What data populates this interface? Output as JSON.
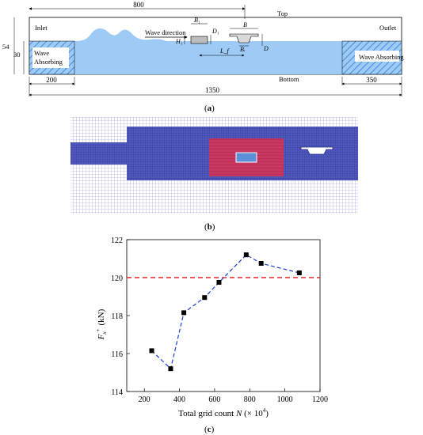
{
  "panel_a": {
    "label_open": "(",
    "label_letter": "a",
    "label_close": ")",
    "dim_800": "800",
    "dim_top": "Top",
    "dim_54": "54",
    "dim_30": "30",
    "inlet": "Inlet",
    "outlet": "Outlet",
    "wave_direction": "Wave direction",
    "wave_absorbing_left_1": "Wave",
    "wave_absorbing_left_2": "Absorbing",
    "wave_absorbing_right": "Wave Absorbing",
    "dim_200": "200",
    "dim_350": "350",
    "bottom": "Bottom",
    "dim_1350": "1350",
    "sym_B1": "B₁",
    "sym_H1": "H₁",
    "sym_D1": "D₁",
    "sym_B": "B",
    "sym_Br": "Bᵣ",
    "sym_D": "D",
    "sym_Lf": "L_f",
    "colors": {
      "water": "#9ecbf6",
      "hatch": "#2e7ad1",
      "line": "#000000"
    }
  },
  "panel_b": {
    "label_open": "(",
    "label_letter": "b",
    "label_close": ")",
    "colors": {
      "mesh_coarse": "#b9bce8",
      "mesh_fine": "#4d55b8",
      "refine_zone": "#c43a60",
      "body_fill": "#5b8fd8"
    }
  },
  "panel_c": {
    "label_open": "(",
    "label_letter": "c",
    "label_close": ")",
    "ylabel_main": "F",
    "ylabel_sub": "x",
    "ylabel_sup": "+",
    "ylabel_unit": "(kN)",
    "xlabel_prefix": "Total grid count ",
    "xlabel_var": "N",
    "xlabel_unit_open": " (× 10",
    "xlabel_exp": "4",
    "xlabel_unit_close": ")"
  },
  "chart_data": {
    "type": "scatter",
    "xlabel": "Total grid count N (× 10⁴)",
    "ylabel": "Fx+ (kN)",
    "xlim": [
      100,
      1200
    ],
    "ylim": [
      114,
      122
    ],
    "x_ticks": [
      "200",
      "400",
      "600",
      "800",
      "1000",
      "1200"
    ],
    "y_ticks": [
      "114",
      "116",
      "118",
      "120",
      "122"
    ],
    "series": [
      {
        "style": "dashed-line-square-markers",
        "color": "#1f3fd6",
        "x": [
          242,
          350,
          425,
          543,
          625,
          780,
          865,
          1082
        ],
        "y": [
          116.15,
          115.2,
          118.15,
          118.95,
          119.75,
          121.2,
          120.75,
          120.25
        ]
      }
    ],
    "reference_line": {
      "y": 120.0,
      "color": "#e8232a",
      "style": "dashed"
    },
    "grid": false
  }
}
